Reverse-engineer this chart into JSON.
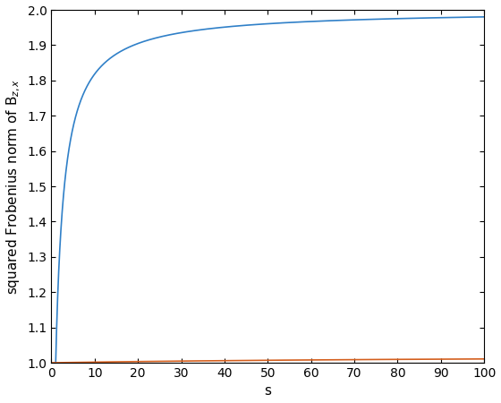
{
  "s_min": 0,
  "s_max": 100,
  "ylim_bottom": 1.0,
  "ylim_top": 2.0,
  "yticks": [
    1.0,
    1.1,
    1.2,
    1.3,
    1.4,
    1.5,
    1.6,
    1.7,
    1.8,
    1.9,
    2.0
  ],
  "xticks": [
    0,
    10,
    20,
    30,
    40,
    50,
    60,
    70,
    80,
    90,
    100
  ],
  "xlabel": "s",
  "ylabel": "squared Frobenius norm of B$_{z,x}$",
  "blue_color": "#3080c8",
  "orange_color": "#d45f1e",
  "background_color": "#ffffff",
  "n_points": 2000,
  "line_width": 1.2,
  "tick_fontsize": 10,
  "label_fontsize": 11
}
